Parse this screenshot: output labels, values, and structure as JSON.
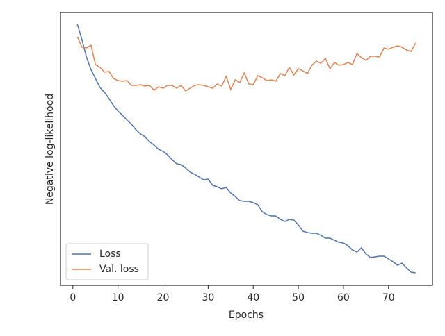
{
  "chart_data": {
    "type": "line",
    "xlabel": "Epochs",
    "ylabel": "Negative log-likelihood",
    "x": [
      1,
      2,
      3,
      4,
      5,
      6,
      7,
      8,
      9,
      10,
      11,
      12,
      13,
      14,
      15,
      16,
      17,
      18,
      19,
      20,
      21,
      22,
      23,
      24,
      25,
      26,
      27,
      28,
      29,
      30,
      31,
      32,
      33,
      34,
      35,
      36,
      37,
      38,
      39,
      40,
      41,
      42,
      43,
      44,
      45,
      46,
      47,
      48,
      49,
      50,
      51,
      52,
      53,
      54,
      55,
      56,
      57,
      58,
      59,
      60,
      61,
      62,
      63,
      64,
      65,
      66,
      67,
      68,
      69,
      70,
      71,
      72,
      73,
      74,
      75,
      76
    ],
    "series": [
      {
        "name": "Loss",
        "color": "#4c72b0",
        "values": [
          376,
          354,
          329,
          311,
          298,
          285,
          278,
          269,
          259,
          251,
          245,
          238,
          232,
          224,
          218,
          214,
          207,
          202,
          196,
          193,
          188,
          181,
          175,
          174,
          169,
          163,
          160,
          156,
          152,
          153,
          144,
          142,
          139,
          141,
          133,
          128,
          122,
          121,
          121,
          119,
          116,
          106,
          102,
          100,
          100,
          95,
          92,
          95,
          94,
          87,
          78,
          76,
          75,
          75,
          72,
          68,
          68,
          65,
          62,
          61,
          57,
          51,
          48,
          54,
          45,
          40,
          41,
          42,
          42,
          38,
          34,
          29,
          32,
          25,
          19,
          18
        ]
      },
      {
        "name": "Val. loss",
        "color": "#dd8452",
        "values": [
          358,
          343,
          342,
          346,
          318,
          314,
          307,
          308,
          298,
          295,
          294,
          295,
          288,
          288,
          289,
          287,
          288,
          281,
          286,
          284,
          288,
          288,
          284,
          288,
          280,
          284,
          288,
          289,
          288,
          286,
          284,
          290,
          287,
          301,
          282,
          296,
          292,
          306,
          290,
          289,
          302,
          299,
          295,
          296,
          294,
          305,
          302,
          314,
          303,
          312,
          309,
          305,
          317,
          323,
          320,
          327,
          312,
          321,
          317,
          318,
          321,
          318,
          334,
          328,
          324,
          330,
          330,
          329,
          342,
          340,
          343,
          345,
          343,
          339,
          337,
          349
        ]
      }
    ],
    "xlim": [
      -2.75,
      79.75
    ],
    "xticks": [
      0,
      10,
      20,
      30,
      40,
      50,
      60,
      70
    ],
    "ylim": [
      0,
      393
    ],
    "legend": "lower left"
  }
}
